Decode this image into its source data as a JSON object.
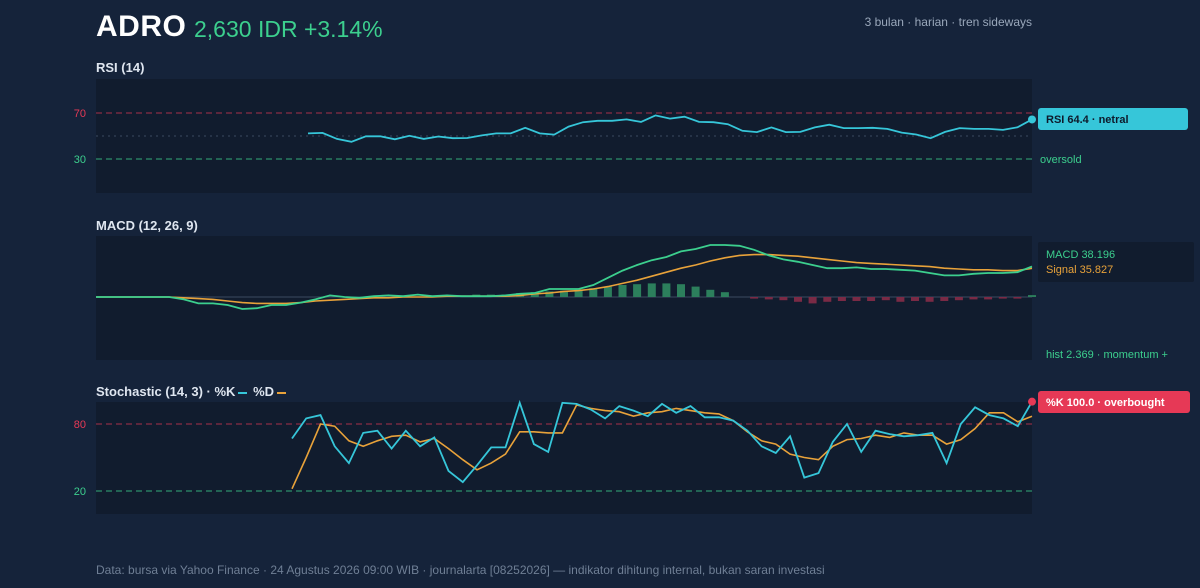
{
  "header": {
    "ticker": "ADRO",
    "price": "2,630 IDR +3.14%",
    "period": "3 bulan · harian · tren sideways"
  },
  "colors": {
    "background": "#15233a",
    "panel": "#111c2e",
    "rsi": "#36c6d9",
    "k_line": "#36c6d9",
    "d_line": "#e8a23a",
    "macd_line": "#3ccf8e",
    "signal_line": "#e8a23a",
    "hist_pos": "#2c7f5c",
    "hist_neg": "#7a2a45",
    "overbought": "#e63956",
    "oversold": "#3ccf8e"
  },
  "chart_data": [
    {
      "type": "line",
      "title": "RSI (14)",
      "ylim": [
        0,
        100
      ],
      "y_ticks": [
        30,
        70
      ],
      "reference_lines": [
        {
          "value": 70,
          "color": "#e63956",
          "style": "dashed"
        },
        {
          "value": 50,
          "color": "#3a4a60",
          "style": "dotted"
        },
        {
          "value": 30,
          "color": "#3ccf8e",
          "style": "dashed",
          "label": "oversold"
        }
      ],
      "x_start": 14,
      "x_count": 64,
      "series": [
        {
          "values": [
            52.3,
            52.7,
            47.5,
            45.0,
            49.7,
            49.7,
            47.1,
            50.2,
            47.5,
            49.6,
            48.1,
            48.3,
            50.5,
            52.3,
            52.3,
            57.1,
            52.3,
            51.2,
            58.2,
            62.0,
            63.2,
            63.2,
            64.4,
            62.3,
            67.9,
            65.1,
            66.8,
            62.3,
            62.0,
            60.3,
            54.5,
            53.4,
            57.5,
            53.4,
            53.6,
            57.5,
            59.8,
            56.9,
            56.9,
            57.1,
            56.2,
            53.0,
            51.3,
            48.1,
            53.6,
            56.9,
            56.2,
            56.2,
            55.3,
            57.6,
            64.4
          ]
        }
      ],
      "badge": "RSI 64.4 · netral"
    },
    {
      "type": "line",
      "title": "MACD (12, 26, 9)",
      "ylim": [
        -56,
        78
      ],
      "zero_line": true,
      "series": [
        {
          "name": "MACD",
          "values": [
            0,
            0,
            0,
            0,
            0,
            0,
            -3,
            -8,
            -8,
            -10,
            -15,
            -14,
            -10,
            -10,
            -7,
            -3,
            2,
            0,
            -1,
            1,
            2,
            1,
            3,
            1,
            2,
            1,
            1,
            1,
            2,
            4,
            5,
            10,
            10,
            10,
            15,
            24,
            33,
            40,
            46,
            50,
            57,
            60,
            65,
            65,
            64,
            59,
            52,
            47,
            44,
            40,
            36,
            36,
            37,
            35,
            35,
            34,
            33,
            30,
            27,
            27,
            29,
            30,
            30,
            31,
            38.196
          ]
        },
        {
          "name": "Signal",
          "values": [
            0,
            0,
            0,
            0,
            0,
            0,
            -1,
            -2,
            -3,
            -5,
            -7,
            -8,
            -8,
            -8,
            -7,
            -5,
            -4,
            -3,
            -2,
            -1,
            -1,
            0,
            0,
            0,
            1,
            1,
            1,
            1,
            1,
            2,
            4,
            5,
            7,
            8,
            10,
            13,
            17,
            21,
            26,
            31,
            36,
            40,
            45,
            49,
            52,
            53,
            53,
            52,
            51,
            49,
            47,
            45,
            43,
            42,
            41,
            40,
            39,
            38,
            36,
            35,
            34,
            34,
            33,
            33,
            35.827
          ]
        },
        {
          "name": "Histogram",
          "values": [
            0,
            0,
            0,
            0,
            0,
            0,
            0,
            0,
            0,
            0,
            0,
            0,
            0,
            0,
            0,
            0,
            0,
            0,
            0,
            0,
            0,
            0,
            0,
            0,
            1,
            2,
            3,
            3,
            3,
            5,
            6,
            7,
            8,
            9,
            11,
            13,
            15,
            16,
            17,
            17,
            16,
            13,
            9,
            6,
            0,
            -2,
            -3,
            -4,
            -6,
            -8,
            -6,
            -5,
            -5,
            -5,
            -4,
            -6,
            -5,
            -6,
            -5,
            -4,
            -3,
            -3,
            -2,
            -2,
            2.369
          ]
        }
      ],
      "legend": {
        "macd": "MACD 38.196",
        "signal": "Signal 35.827"
      },
      "hist_label": "hist 2.369 · momentum +"
    },
    {
      "type": "line",
      "title": "Stochastic (14, 3) · %K",
      "title_d": "%D",
      "ylim": [
        0,
        105
      ],
      "y_ticks": [
        20,
        80
      ],
      "reference_lines": [
        {
          "value": 80,
          "color": "#e63956",
          "style": "dashed"
        },
        {
          "value": 20,
          "color": "#3ccf8e",
          "style": "dashed"
        }
      ],
      "series": [
        {
          "name": "%K",
          "start": 13,
          "values": [
            67,
            85,
            88,
            60,
            45,
            72,
            74,
            58,
            74,
            60,
            68,
            38,
            28,
            43,
            59,
            59,
            99,
            62,
            55,
            99,
            98,
            93,
            85,
            96,
            92,
            87,
            98,
            90,
            96,
            86,
            86,
            83,
            74,
            60,
            54,
            69,
            32,
            36,
            64,
            80,
            55,
            74,
            71,
            69,
            70,
            72,
            45,
            80,
            95,
            88,
            85,
            78,
            100
          ]
        },
        {
          "name": "%D",
          "start": 13,
          "values": [
            22,
            50,
            80,
            78,
            65,
            60,
            65,
            69,
            70,
            64,
            67,
            58,
            48,
            39,
            45,
            53,
            73,
            73,
            72,
            72,
            97,
            94,
            92,
            91,
            87,
            90,
            91,
            94,
            92,
            90,
            89,
            83,
            73,
            65,
            62,
            53,
            50,
            48,
            60,
            66,
            67,
            70,
            68,
            72,
            70,
            70,
            62,
            66,
            76,
            90,
            90,
            82,
            87
          ]
        }
      ],
      "badge": "%K 100.0 · overbought"
    }
  ],
  "panels": {
    "rsi": {
      "title": "RSI (14)",
      "tick_70": "70",
      "tick_30": "30",
      "oversold_label": "oversold",
      "badge": "RSI 64.4 · netral"
    },
    "macd": {
      "title": "MACD (12, 26, 9)",
      "legend_macd": "MACD 38.196",
      "legend_signal": "Signal 35.827",
      "hist_label": "hist 2.369 · momentum +"
    },
    "stoch": {
      "title": "Stochastic (14, 3) · %K",
      "title_d": "%D",
      "tick_80": "80",
      "tick_20": "20",
      "badge": "%K 100.0 · overbought"
    }
  },
  "footer": "Data: bursa via Yahoo Finance · 24 Agustus 2026 09:00 WIB · journalarta [08252026] — indikator dihitung internal, bukan saran investasi"
}
